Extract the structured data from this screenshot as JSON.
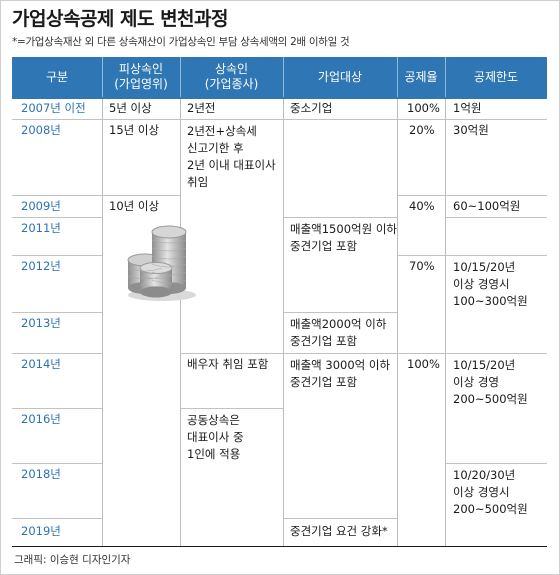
{
  "title": "가업상속공제 제도 변천과정",
  "note": "*=가업상속재산 외 다른 상속재산이 가업상속인 부담 상속세액의 2배 이하일 것",
  "headers": [
    "구분",
    "피상속인\n(가업영위)",
    "상속인\n(가업종사)",
    "가업대상",
    "공제율",
    "공제한도"
  ],
  "years": [
    "2007년 이전",
    "2008년",
    "2009년",
    "2011년",
    "2012년",
    "2013년",
    "2014년",
    "2016년",
    "2018년",
    "2019년"
  ],
  "cells": {
    "deceased": [
      "5년 이상",
      "15년 이상",
      "10년 이상"
    ],
    "heir": [
      "2년전",
      "2년전+상속세\n신고기한 후\n2년 이내 대표이사\n취임",
      "배우자 취임 포함",
      "공동상속은\n대표이사 중\n1인에 적용"
    ],
    "target": [
      "중소기업",
      "매출액1500억원 이하\n중견기업 포함",
      "매출액2000억 이하\n중견기업 포함",
      "매출액 3000억 이하\n중견기업 포함",
      "중견기업 요건 강화*"
    ],
    "rate": [
      "100%",
      "20%",
      "40%",
      "70%",
      "100%"
    ],
    "limit": [
      "1억원",
      "30억원",
      "60~100억원",
      "10/15/20년\n이상 경영시\n100~300억원",
      "10/15/20년\n이상 경영\n200~500억원",
      "10/20/30년\n이상 경영시\n200~500억원"
    ]
  },
  "credit": "그래픽: 이승현 디자인기자",
  "colors": {
    "header_bg": "#2f77b4",
    "year_text": "#2a72b5",
    "coin": "#b9b9b9"
  }
}
